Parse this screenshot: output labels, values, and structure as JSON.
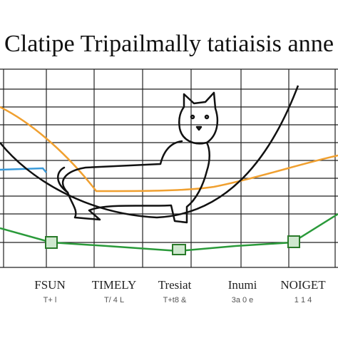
{
  "header": {
    "title": "Clatipe Tripailmally tatiaisis anne"
  },
  "x_labels": [
    "FSUN",
    "TIMELY",
    "Tresiat",
    "Inumi",
    "NOIGET"
  ],
  "x_sublabels": [
    "T+ l",
    "T/ 4 L",
    "T+t8 &",
    "3a 0 e",
    "1 1 4"
  ]
}
